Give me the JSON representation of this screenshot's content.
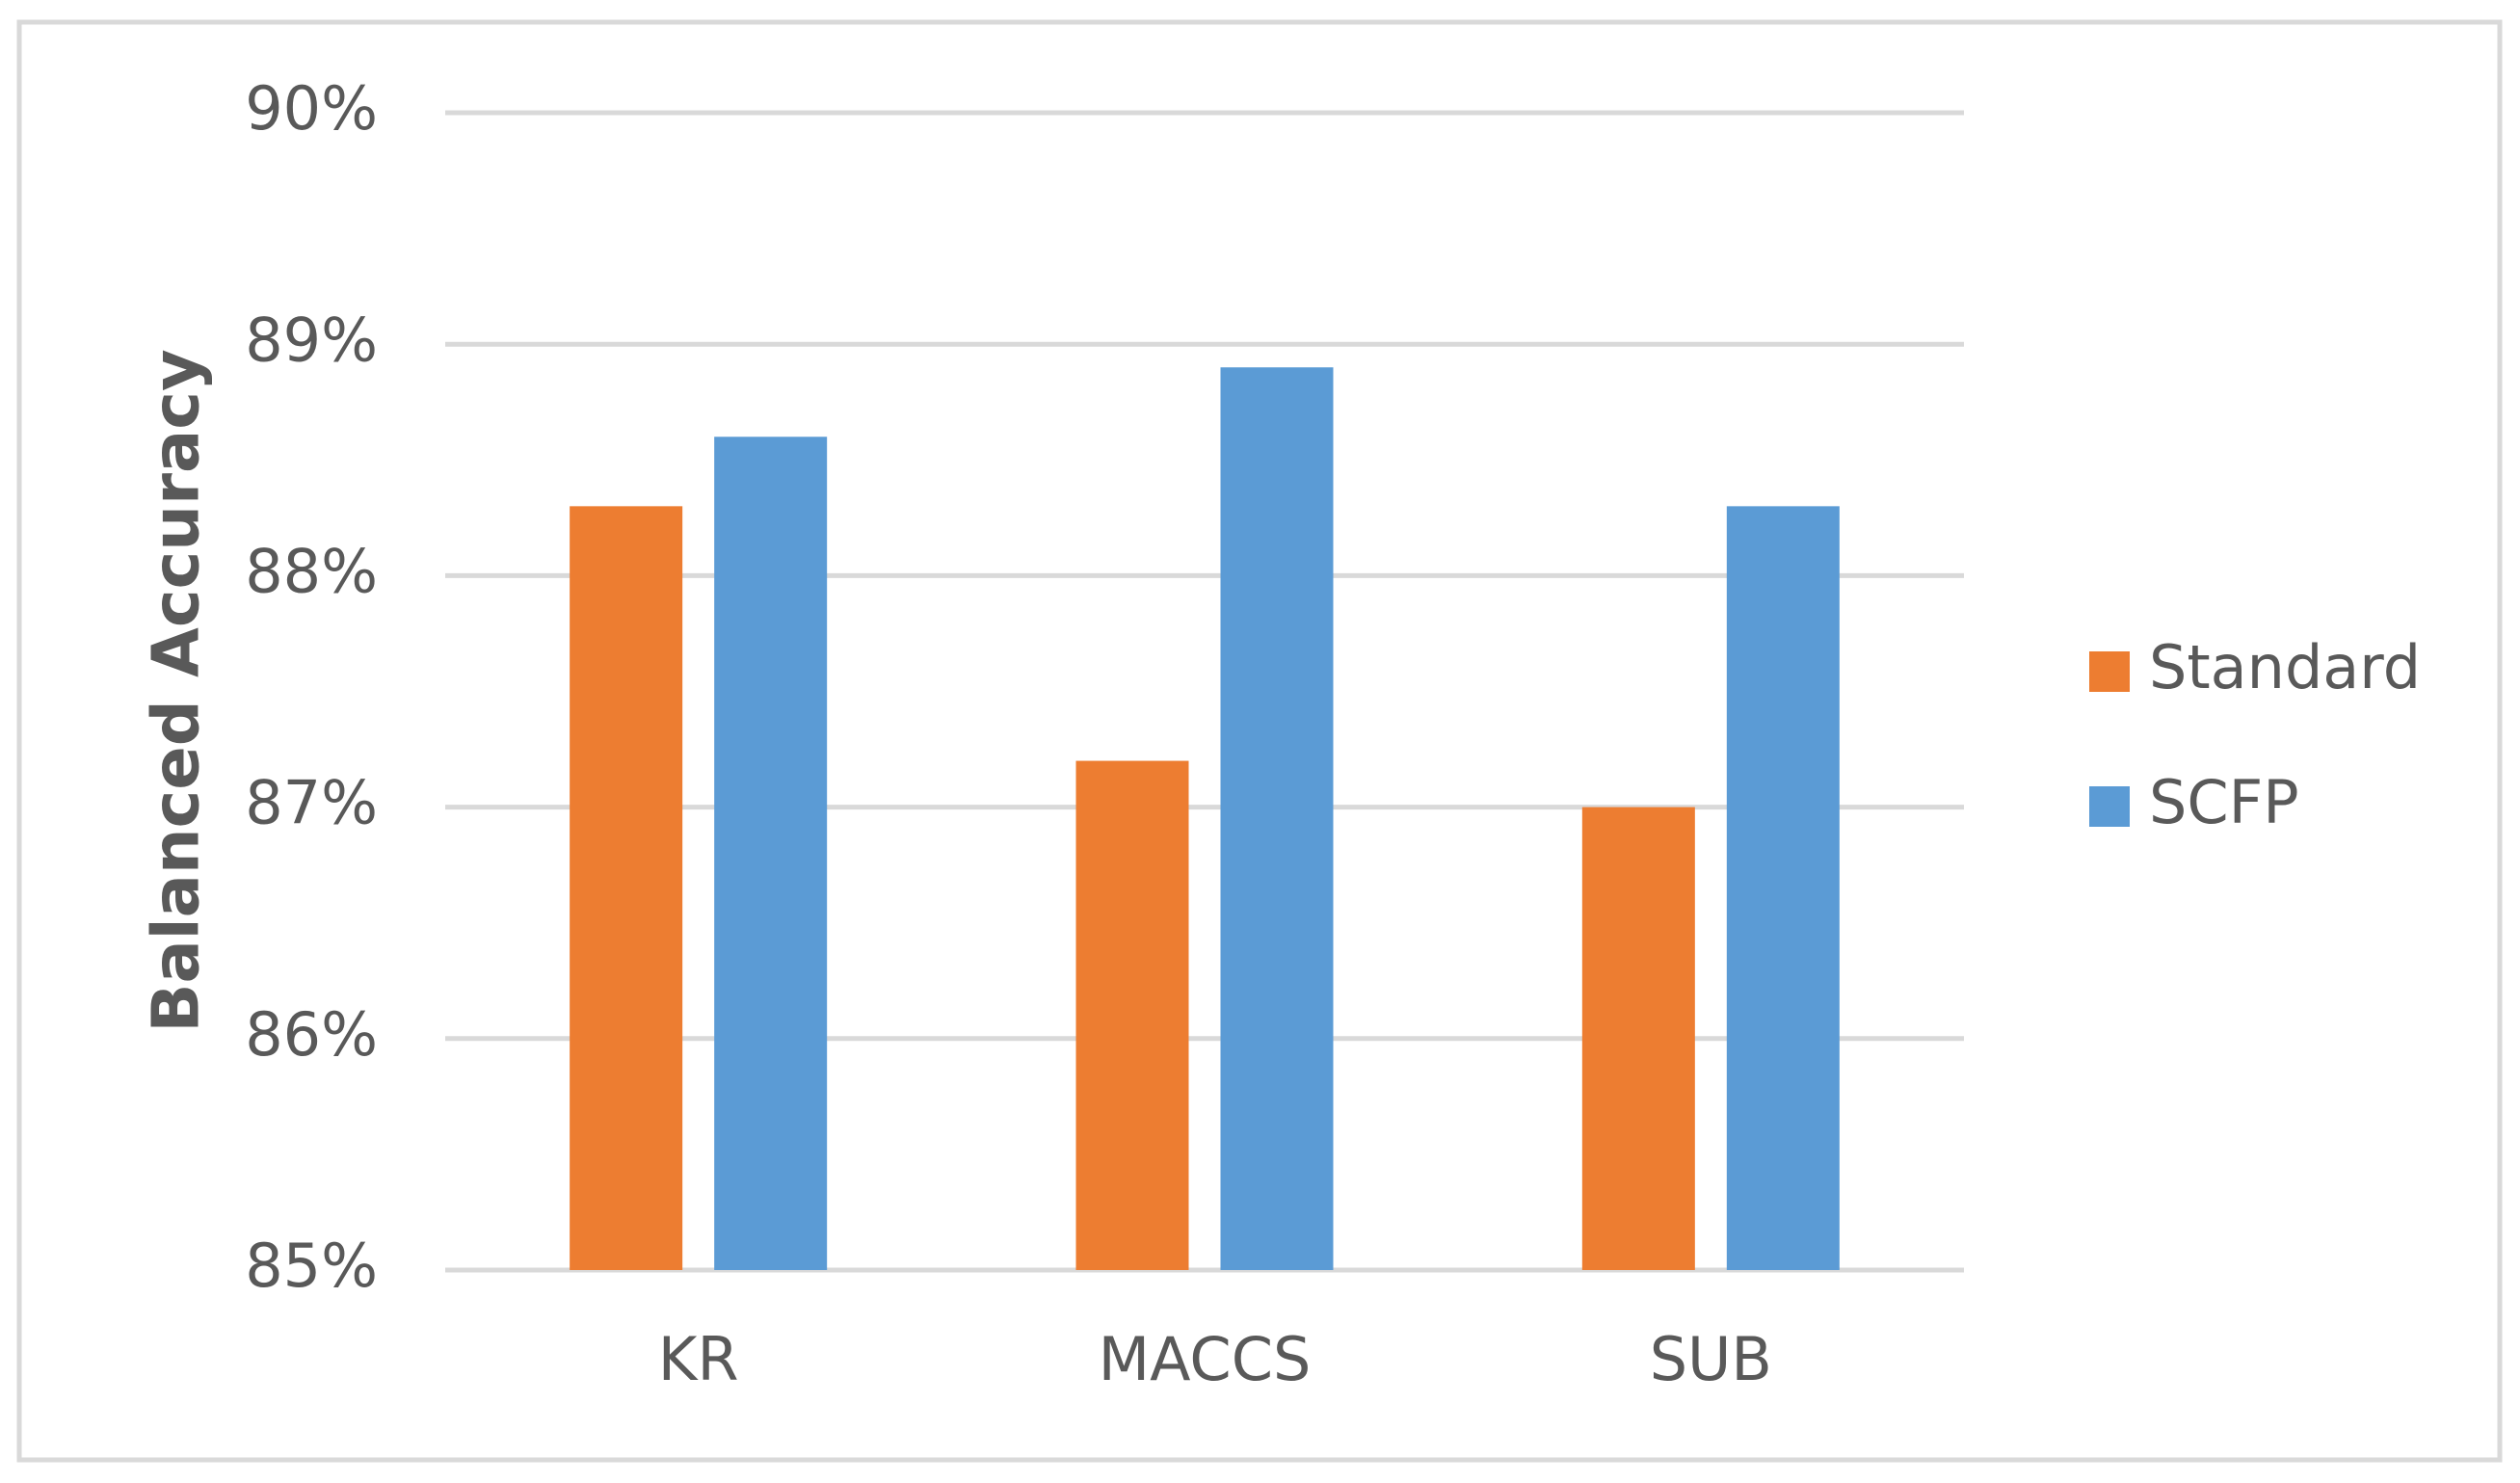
{
  "chart_data": {
    "type": "bar",
    "y_label": "Balanced Accuracy",
    "categories": [
      "KR",
      "MACCS",
      "SUB"
    ],
    "series": [
      {
        "name": "Standard",
        "color": "#ED7D31",
        "values": [
          88.3,
          87.2,
          87.0
        ]
      },
      {
        "name": "SCFP",
        "color": "#5B9BD5",
        "values": [
          88.6,
          88.9,
          88.3
        ]
      }
    ],
    "ylim": [
      85,
      90
    ],
    "yticks": [
      {
        "value": 85,
        "label": "85%"
      },
      {
        "value": 86,
        "label": "86%"
      },
      {
        "value": 87,
        "label": "87%"
      },
      {
        "value": 88,
        "label": "88%"
      },
      {
        "value": 89,
        "label": "89%"
      },
      {
        "value": 90,
        "label": "90%"
      }
    ],
    "grid": true,
    "legend": "right"
  }
}
